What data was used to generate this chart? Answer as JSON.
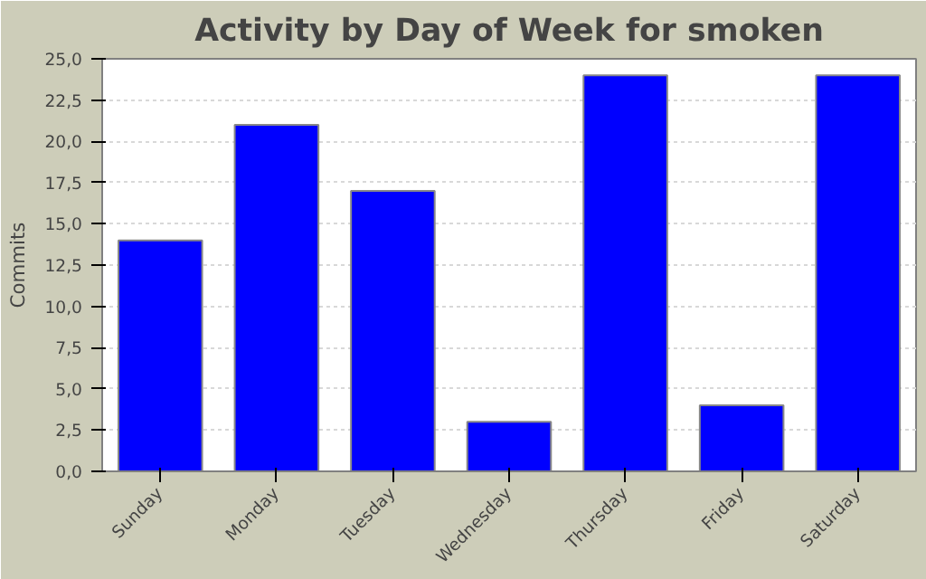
{
  "chart_data": {
    "type": "bar",
    "title": "Activity by Day of Week for smoken",
    "ylabel": "Commits",
    "categories": [
      "Sunday",
      "Monday",
      "Tuesday",
      "Wednesday",
      "Thursday",
      "Friday",
      "Saturday"
    ],
    "values": [
      14,
      21,
      17,
      3,
      24,
      4,
      24
    ],
    "color": "#0000ff",
    "ylim": [
      0,
      25
    ],
    "yticks": [
      {
        "value": 0,
        "label": "0,0"
      },
      {
        "value": 2.5,
        "label": "2,5"
      },
      {
        "value": 5,
        "label": "5,0"
      },
      {
        "value": 7.5,
        "label": "7,5"
      },
      {
        "value": 10,
        "label": "10,0"
      },
      {
        "value": 12.5,
        "label": "12,5"
      },
      {
        "value": 15,
        "label": "15,0"
      },
      {
        "value": 17.5,
        "label": "17,5"
      },
      {
        "value": 20,
        "label": "20,0"
      },
      {
        "value": 22.5,
        "label": "22,5"
      },
      {
        "value": 25,
        "label": "25,0"
      }
    ],
    "grid": "y"
  }
}
